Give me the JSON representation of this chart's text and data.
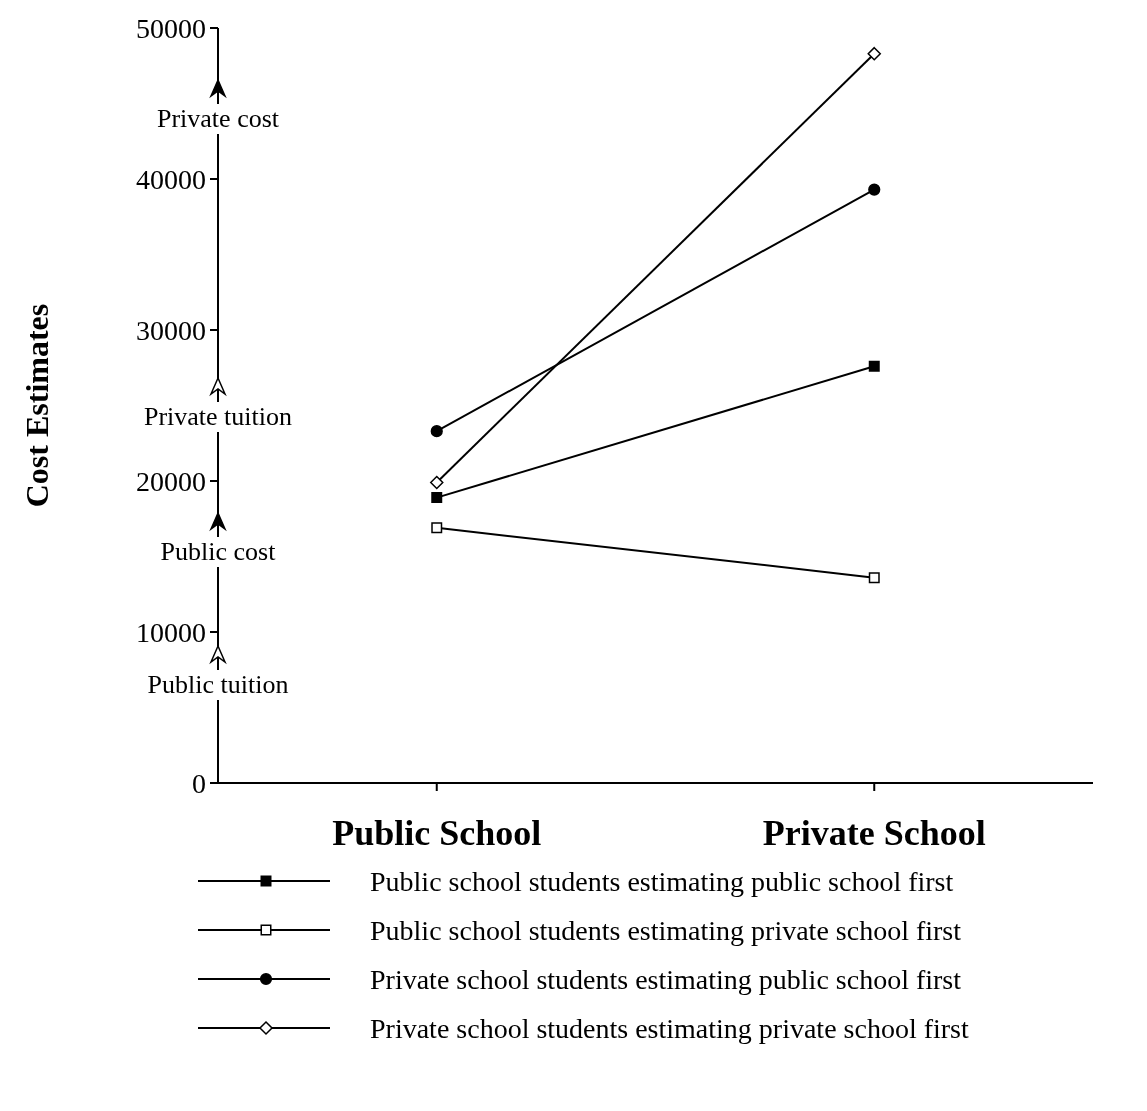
{
  "chart_data": {
    "type": "line",
    "ylabel": "Cost Estimates",
    "categories": [
      "Public School",
      "Private School"
    ],
    "ylim": [
      0,
      50000
    ],
    "yticks": [
      0,
      10000,
      20000,
      30000,
      40000,
      50000
    ],
    "grid": false,
    "legend": "bottom",
    "series": [
      {
        "name": "Public school students estimating public school first",
        "color": "#000000",
        "marker": "square",
        "values": [
          18900,
          27600
        ]
      },
      {
        "name": "Public school students estimating private school first",
        "color": "#000000",
        "marker": "square",
        "values": [
          16900,
          13600
        ]
      },
      {
        "name": "Private school students estimating public school first",
        "color": "#000000",
        "marker": "circle",
        "values": [
          23300,
          39300
        ]
      },
      {
        "name": "Private school students estimating private school first",
        "color": "#000000",
        "marker": "diamond",
        "values": [
          19900,
          48300
        ]
      }
    ],
    "annotations": [
      "Private cost",
      "Private tuition",
      "Public cost",
      "Public tuition"
    ]
  }
}
